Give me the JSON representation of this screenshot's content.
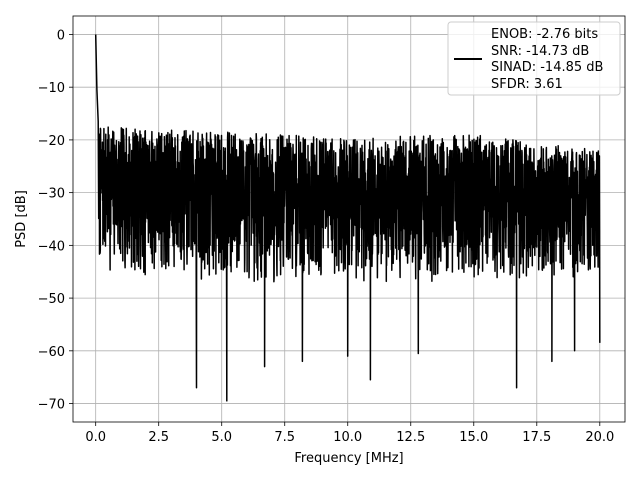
{
  "chart_data": {
    "type": "line",
    "title": "",
    "xlabel": "Frequency [MHz]",
    "ylabel": "PSD [dB]",
    "xlim": [
      -0.9,
      21.0
    ],
    "ylim": [
      -73.5,
      3.5
    ],
    "xticks": [
      0.0,
      2.5,
      5.0,
      7.5,
      10.0,
      12.5,
      15.0,
      17.5,
      20.0
    ],
    "xtick_labels": [
      "0.0",
      "2.5",
      "5.0",
      "7.5",
      "10.0",
      "12.5",
      "15.0",
      "17.5",
      "20.0"
    ],
    "yticks": [
      0,
      -10,
      -20,
      -30,
      -40,
      -50,
      -60,
      -70
    ],
    "ytick_labels": [
      "0",
      "−10",
      "−20",
      "−30",
      "−40",
      "−50",
      "−60",
      "−70"
    ],
    "grid": true,
    "legend_position": "top-right",
    "series": [
      {
        "line_color": "#000000",
        "x_range": [
          0,
          20
        ],
        "notable_points": [
          {
            "x": 0.0,
            "y": 0.0
          },
          {
            "x": 0.05,
            "y": -10.5
          },
          {
            "x": 0.1,
            "y": -16.5
          },
          {
            "x": 4.0,
            "y": -67.0
          },
          {
            "x": 5.2,
            "y": -69.5
          },
          {
            "x": 6.7,
            "y": -63.0
          },
          {
            "x": 8.2,
            "y": -62.0
          },
          {
            "x": 10.0,
            "y": -61.0
          },
          {
            "x": 10.9,
            "y": -65.5
          },
          {
            "x": 12.8,
            "y": -60.5
          },
          {
            "x": 16.7,
            "y": -67.0
          },
          {
            "x": 18.1,
            "y": -62.0
          },
          {
            "x": 19.0,
            "y": -60.0
          },
          {
            "x": 20.0,
            "y": -58.5
          }
        ],
        "envelope_upper": [
          {
            "x": 0.5,
            "y": -17.5
          },
          {
            "x": 2.5,
            "y": -18.0
          },
          {
            "x": 5.0,
            "y": -18.5
          },
          {
            "x": 10.0,
            "y": -19.5
          },
          {
            "x": 15.0,
            "y": -19.0
          },
          {
            "x": 20.0,
            "y": -22.0
          }
        ],
        "envelope_lower": [
          {
            "x": 0.5,
            "y": -45.0
          },
          {
            "x": 2.5,
            "y": -46.0
          },
          {
            "x": 5.0,
            "y": -47.0
          },
          {
            "x": 10.0,
            "y": -47.0
          },
          {
            "x": 15.0,
            "y": -47.0
          },
          {
            "x": 20.0,
            "y": -46.0
          }
        ]
      }
    ],
    "legend": {
      "line_color": "#000000",
      "lines": [
        "ENOB: -2.76 bits",
        "SNR: -14.73 dB",
        "SINAD: -14.85 dB",
        "SFDR: 3.61"
      ]
    }
  }
}
